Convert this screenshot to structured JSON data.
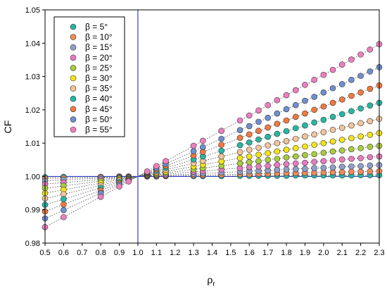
{
  "chart_data": {
    "type": "scatter",
    "xlabel": "ρ",
    "xlabel_sub": "r",
    "ylabel": "CF",
    "xlim": [
      0.5,
      2.3
    ],
    "ylim": [
      0.98,
      1.05
    ],
    "x_ticks": [
      "0.5",
      "0.6",
      "0.7",
      "0.8",
      "0.9",
      "1.0",
      "1.1",
      "1.2",
      "1.3",
      "1.4",
      "1.5",
      "1.6",
      "1.7",
      "1.8",
      "1.9",
      "2.0",
      "2.1",
      "2.2",
      "2.3"
    ],
    "x_tick_values": [
      0.5,
      0.6,
      0.7,
      0.8,
      0.9,
      1.0,
      1.1,
      1.2,
      1.3,
      1.4,
      1.5,
      1.6,
      1.7,
      1.8,
      1.9,
      2.0,
      2.1,
      2.2,
      2.3
    ],
    "y_ticks": [
      "0.98",
      "0.99",
      "1.00",
      "1.01",
      "1.02",
      "1.03",
      "1.04",
      "1.05"
    ],
    "y_tick_values": [
      0.98,
      0.99,
      1.0,
      1.01,
      1.02,
      1.03,
      1.04,
      1.05
    ],
    "reference_lines": {
      "x": 1.0,
      "y": 1.0,
      "color": "#3040c8"
    },
    "grid": false,
    "legend_position": "top-left",
    "x_points": [
      0.5,
      0.6,
      0.8,
      0.9,
      0.95,
      1.05,
      1.1,
      1.15,
      1.3,
      1.35,
      1.45,
      1.55,
      1.6,
      1.65,
      1.7,
      1.75,
      1.8,
      1.85,
      1.9,
      1.95,
      2.0,
      2.05,
      2.1,
      2.15,
      2.2,
      2.25,
      2.3
    ],
    "series": [
      {
        "name": "β = 5°",
        "color": "#2bb3a3",
        "slope": 0.0003,
        "values": [
          0.9998,
          0.9999,
          0.9999,
          1.0,
          1.0,
          1.0,
          1.0,
          1.0001,
          1.0001,
          1.0001,
          1.0001,
          1.0002,
          1.0002,
          1.0002,
          1.0002,
          1.0002,
          1.0002,
          1.0003,
          1.0003,
          1.0003,
          1.0003,
          1.0003,
          1.0003,
          1.0003,
          1.0004,
          1.0004,
          1.0004
        ]
      },
      {
        "name": "β = 10°",
        "color": "#f08a5a",
        "slope": 0.0012,
        "values": [
          0.9994,
          0.9995,
          0.9998,
          0.9999,
          0.9999,
          1.0001,
          1.0001,
          1.0002,
          1.0004,
          1.0004,
          1.0005,
          1.0007,
          1.0007,
          1.0008,
          1.0008,
          1.0009,
          1.001,
          1.001,
          1.0011,
          1.0011,
          1.0012,
          1.0013,
          1.0013,
          1.0014,
          1.0014,
          1.0015,
          1.0016
        ]
      },
      {
        "name": "β = 15°",
        "color": "#8fa0c8",
        "slope": 0.0026,
        "values": [
          0.9987,
          0.999,
          0.9995,
          0.9997,
          0.9999,
          1.0001,
          1.0003,
          1.0004,
          1.0008,
          1.0009,
          1.0012,
          1.0014,
          1.0016,
          1.0017,
          1.0018,
          1.002,
          1.0021,
          1.0022,
          1.0023,
          1.0025,
          1.0026,
          1.0027,
          1.0029,
          1.003,
          1.0031,
          1.0033,
          1.0034
        ]
      },
      {
        "name": "β = 20°",
        "color": "#e87ac0",
        "slope": 0.0046,
        "values": [
          0.9977,
          0.9982,
          0.9991,
          0.9995,
          0.9998,
          1.0002,
          1.0005,
          1.0007,
          1.0014,
          1.0016,
          1.0021,
          1.0025,
          1.0028,
          1.003,
          1.0032,
          1.0035,
          1.0037,
          1.0039,
          1.0041,
          1.0044,
          1.0046,
          1.0048,
          1.0051,
          1.0053,
          1.0055,
          1.0058,
          1.006
        ]
      },
      {
        "name": "β = 25°",
        "color": "#a8cc3c",
        "slope": 0.0071,
        "values": [
          0.9965,
          0.9972,
          0.9986,
          0.9993,
          0.9996,
          1.0004,
          1.0007,
          1.0011,
          1.0021,
          1.0025,
          1.0032,
          1.0039,
          1.0043,
          1.0046,
          1.005,
          1.0053,
          1.0057,
          1.006,
          1.0064,
          1.0067,
          1.0071,
          1.0075,
          1.0078,
          1.0082,
          1.0085,
          1.0089,
          1.0092
        ]
      },
      {
        "name": "β = 30°",
        "color": "#f2e416",
        "slope": 0.01,
        "values": [
          0.995,
          0.996,
          0.998,
          0.999,
          0.9995,
          1.0005,
          1.001,
          1.0015,
          1.003,
          1.0035,
          1.0045,
          1.0055,
          1.006,
          1.0065,
          1.007,
          1.0075,
          1.008,
          1.0085,
          1.009,
          1.0095,
          1.01,
          1.0105,
          1.011,
          1.0115,
          1.012,
          1.0125,
          1.013
        ]
      },
      {
        "name": "β = 35°",
        "color": "#f3c49a",
        "slope": 0.0133,
        "values": [
          0.9934,
          0.9947,
          0.9973,
          0.9987,
          0.9993,
          1.0007,
          1.0013,
          1.002,
          1.004,
          1.0047,
          1.006,
          1.0073,
          1.008,
          1.0086,
          1.0093,
          1.01,
          1.0106,
          1.0113,
          1.012,
          1.0126,
          1.0133,
          1.014,
          1.0146,
          1.0153,
          1.016,
          1.0166,
          1.0173
        ]
      },
      {
        "name": "β = 40°",
        "color": "#25b8a2",
        "slope": 0.017,
        "values": [
          0.9915,
          0.9932,
          0.9966,
          0.9983,
          0.9992,
          1.0009,
          1.0017,
          1.0026,
          1.0051,
          1.006,
          1.0077,
          1.0094,
          1.0102,
          1.0111,
          1.0119,
          1.0128,
          1.0136,
          1.0145,
          1.0153,
          1.0162,
          1.017,
          1.0179,
          1.0187,
          1.0196,
          1.0204,
          1.0213,
          1.0221
        ]
      },
      {
        "name": "β = 45°",
        "color": "#f2793f",
        "slope": 0.021,
        "values": [
          0.9895,
          0.9916,
          0.9958,
          0.9979,
          0.999,
          1.0011,
          1.0021,
          1.0032,
          1.0063,
          1.0074,
          1.0095,
          1.0116,
          1.0126,
          1.0137,
          1.0147,
          1.0158,
          1.0168,
          1.0179,
          1.0189,
          1.02,
          1.021,
          1.0221,
          1.0231,
          1.0242,
          1.0252,
          1.0263,
          1.0273
        ]
      },
      {
        "name": "β = 50°",
        "color": "#6f8fcf",
        "slope": 0.0252,
        "values": [
          0.9874,
          0.9899,
          0.995,
          0.9975,
          0.9987,
          1.0013,
          1.0025,
          1.0038,
          1.0076,
          1.0088,
          1.0113,
          1.0139,
          1.0151,
          1.0164,
          1.0176,
          1.0189,
          1.0202,
          1.0214,
          1.0227,
          1.0239,
          1.0252,
          1.0265,
          1.0277,
          1.029,
          1.0302,
          1.0315,
          1.0328
        ]
      },
      {
        "name": "β = 55°",
        "color": "#ee7fbf",
        "slope": 0.0305,
        "values": [
          0.9848,
          0.9878,
          0.9939,
          0.997,
          0.9985,
          1.0015,
          1.0031,
          1.0046,
          1.0092,
          1.0107,
          1.0137,
          1.0168,
          1.0183,
          1.0198,
          1.0214,
          1.0229,
          1.0244,
          1.0259,
          1.0275,
          1.029,
          1.0305,
          1.032,
          1.0336,
          1.0351,
          1.0366,
          1.0381,
          1.0397
        ]
      }
    ]
  }
}
